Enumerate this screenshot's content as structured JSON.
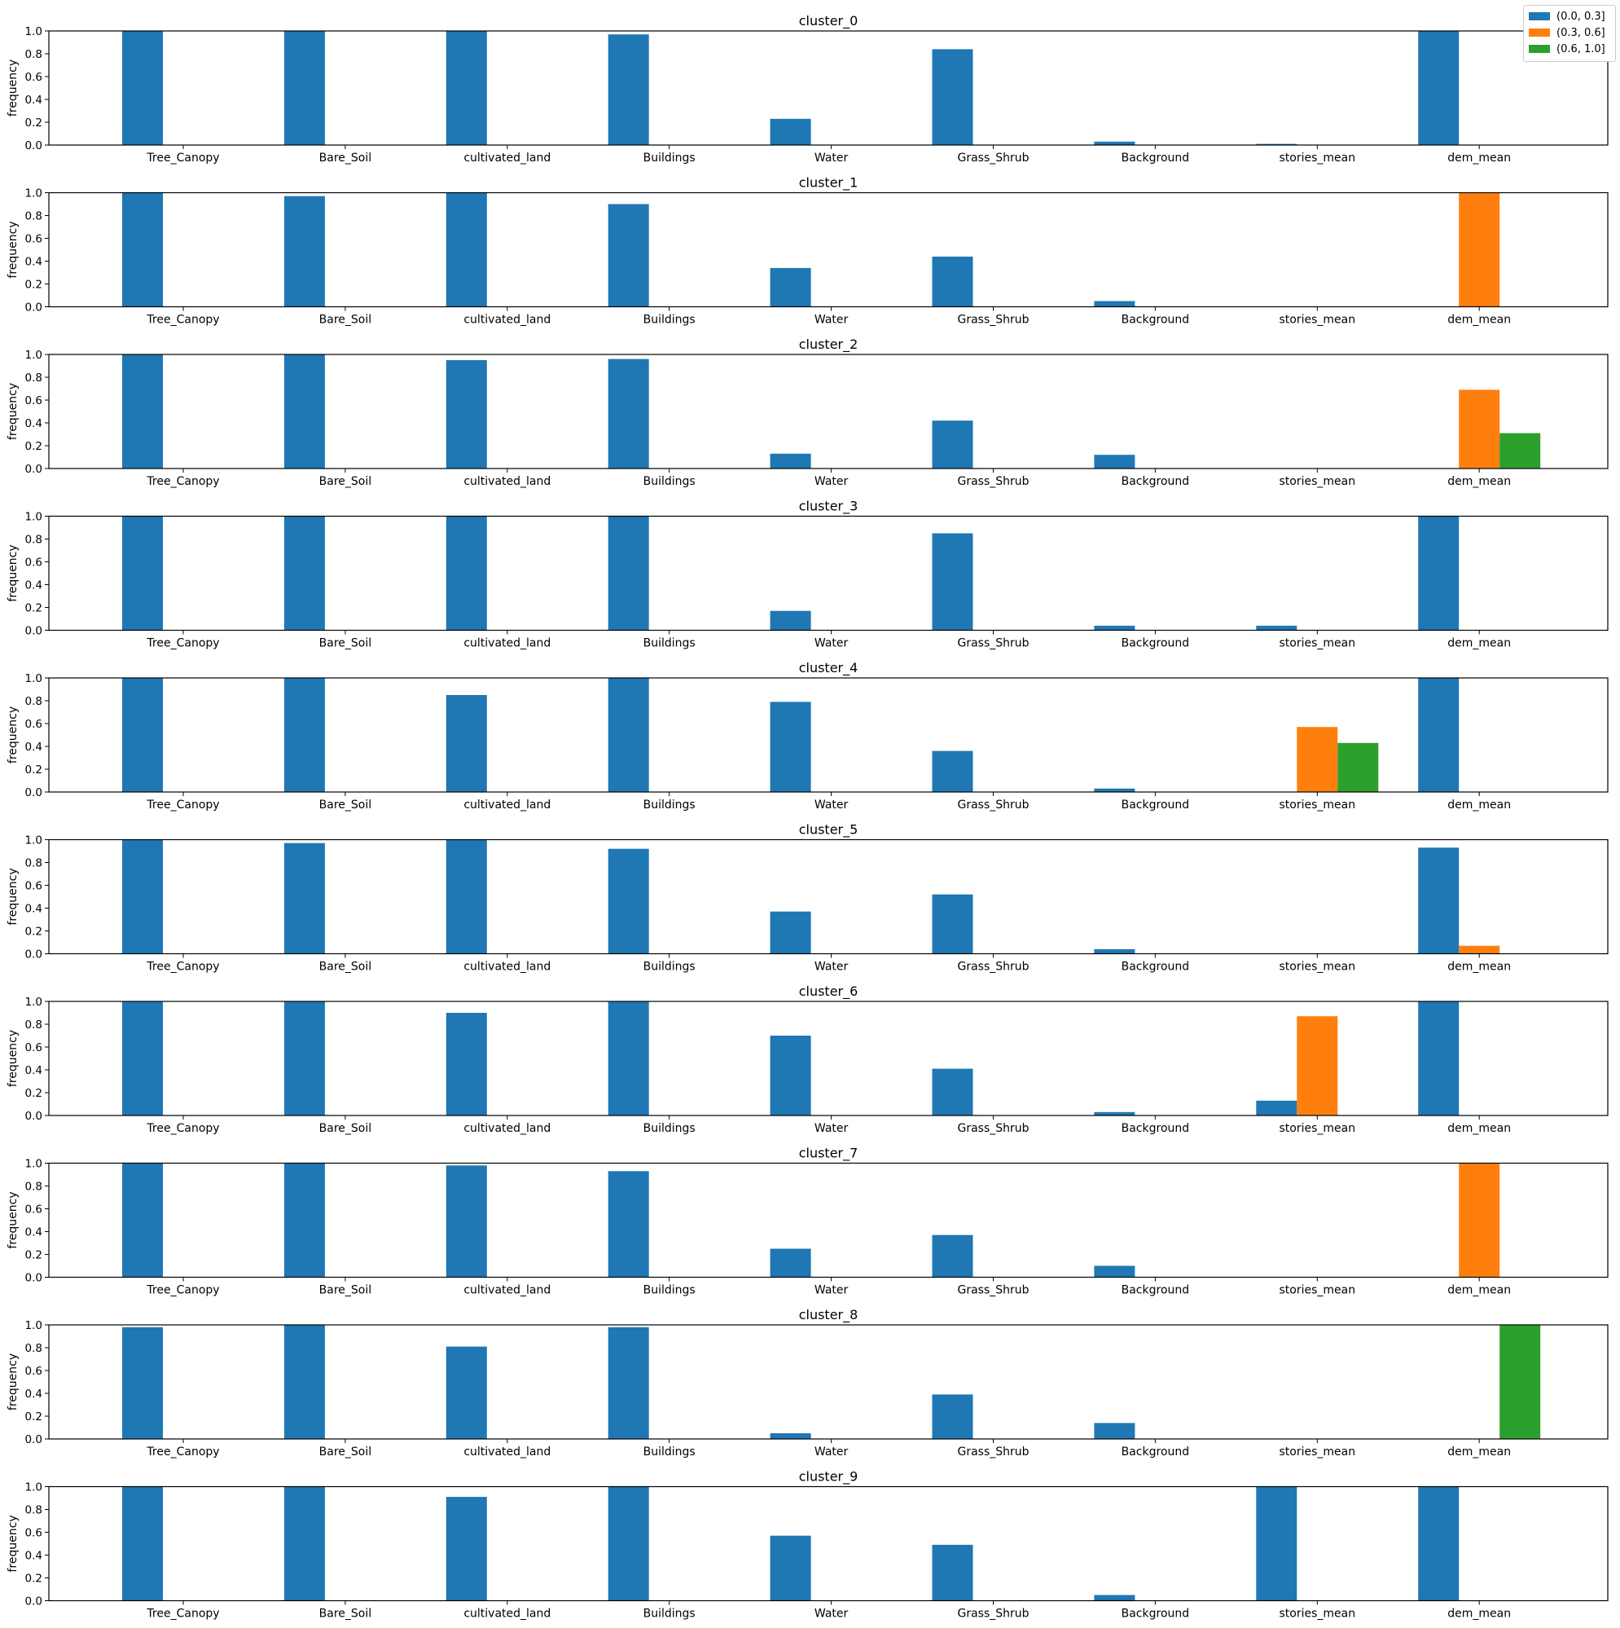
{
  "colors": {
    "bin_0": "#1f77b4",
    "bin_1": "#ff7f0e",
    "bin_2": "#2ca02c"
  },
  "chart_data": {
    "type": "bar",
    "layout": "10 stacked subplots, grouped bars",
    "categories": [
      "Tree_Canopy",
      "Bare_Soil",
      "cultivated_land",
      "Buildings",
      "Water",
      "Grass_Shrub",
      "Background",
      "stories_mean",
      "dem_mean"
    ],
    "bins": [
      "(0.0, 0.3]",
      "(0.3, 0.6]",
      "(0.6, 1.0]"
    ],
    "ylabel": "frequency",
    "ylim": [
      0,
      1.0
    ],
    "yticks": [
      "0.0",
      "0.2",
      "0.4",
      "0.6",
      "0.8",
      "1.0"
    ],
    "legend_position": "top-right",
    "grid": false,
    "panels": [
      {
        "title": "cluster_0",
        "series": [
          {
            "name": "(0.0, 0.3]",
            "values": [
              1.0,
              1.0,
              1.0,
              0.97,
              0.23,
              0.84,
              0.03,
              0.01,
              1.0
            ]
          },
          {
            "name": "(0.3, 0.6]",
            "values": [
              0,
              0,
              0,
              0,
              0,
              0,
              0,
              0,
              0
            ]
          },
          {
            "name": "(0.6, 1.0]",
            "values": [
              0,
              0,
              0,
              0,
              0,
              0,
              0,
              0,
              0
            ]
          }
        ]
      },
      {
        "title": "cluster_1",
        "series": [
          {
            "name": "(0.0, 0.3]",
            "values": [
              1.0,
              0.97,
              1.0,
              0.9,
              0.34,
              0.44,
              0.05,
              0,
              0
            ]
          },
          {
            "name": "(0.3, 0.6]",
            "values": [
              0,
              0,
              0,
              0,
              0,
              0,
              0,
              0,
              1.0
            ]
          },
          {
            "name": "(0.6, 1.0]",
            "values": [
              0,
              0,
              0,
              0,
              0,
              0,
              0,
              0,
              0
            ]
          }
        ]
      },
      {
        "title": "cluster_2",
        "series": [
          {
            "name": "(0.0, 0.3]",
            "values": [
              1.0,
              1.0,
              0.95,
              0.96,
              0.13,
              0.42,
              0.12,
              0,
              0
            ]
          },
          {
            "name": "(0.3, 0.6]",
            "values": [
              0,
              0,
              0,
              0,
              0,
              0,
              0,
              0,
              0.69
            ]
          },
          {
            "name": "(0.6, 1.0]",
            "values": [
              0,
              0,
              0,
              0,
              0,
              0,
              0,
              0,
              0.31
            ]
          }
        ]
      },
      {
        "title": "cluster_3",
        "series": [
          {
            "name": "(0.0, 0.3]",
            "values": [
              1.0,
              1.0,
              1.0,
              1.0,
              0.17,
              0.85,
              0.04,
              0.04,
              1.0
            ]
          },
          {
            "name": "(0.3, 0.6]",
            "values": [
              0,
              0,
              0,
              0,
              0,
              0,
              0,
              0,
              0
            ]
          },
          {
            "name": "(0.6, 1.0]",
            "values": [
              0,
              0,
              0,
              0,
              0,
              0,
              0,
              0,
              0
            ]
          }
        ]
      },
      {
        "title": "cluster_4",
        "series": [
          {
            "name": "(0.0, 0.3]",
            "values": [
              1.0,
              1.0,
              0.85,
              1.0,
              0.79,
              0.36,
              0.03,
              0,
              1.0
            ]
          },
          {
            "name": "(0.3, 0.6]",
            "values": [
              0,
              0,
              0,
              0,
              0,
              0,
              0,
              0.57,
              0
            ]
          },
          {
            "name": "(0.6, 1.0]",
            "values": [
              0,
              0,
              0,
              0,
              0,
              0,
              0,
              0.43,
              0
            ]
          }
        ]
      },
      {
        "title": "cluster_5",
        "series": [
          {
            "name": "(0.0, 0.3]",
            "values": [
              1.0,
              0.97,
              1.0,
              0.92,
              0.37,
              0.52,
              0.04,
              0,
              0.93
            ]
          },
          {
            "name": "(0.3, 0.6]",
            "values": [
              0,
              0,
              0,
              0,
              0,
              0,
              0,
              0,
              0.07
            ]
          },
          {
            "name": "(0.6, 1.0]",
            "values": [
              0,
              0,
              0,
              0,
              0,
              0,
              0,
              0,
              0
            ]
          }
        ]
      },
      {
        "title": "cluster_6",
        "series": [
          {
            "name": "(0.0, 0.3]",
            "values": [
              1.0,
              1.0,
              0.9,
              1.0,
              0.7,
              0.41,
              0.03,
              0.13,
              1.0
            ]
          },
          {
            "name": "(0.3, 0.6]",
            "values": [
              0,
              0,
              0,
              0,
              0,
              0,
              0,
              0.87,
              0
            ]
          },
          {
            "name": "(0.6, 1.0]",
            "values": [
              0,
              0,
              0,
              0,
              0,
              0,
              0,
              0,
              0
            ]
          }
        ]
      },
      {
        "title": "cluster_7",
        "series": [
          {
            "name": "(0.0, 0.3]",
            "values": [
              1.0,
              1.0,
              0.98,
              0.93,
              0.25,
              0.37,
              0.1,
              0,
              0
            ]
          },
          {
            "name": "(0.3, 0.6]",
            "values": [
              0,
              0,
              0,
              0,
              0,
              0,
              0,
              0,
              1.0
            ]
          },
          {
            "name": "(0.6, 1.0]",
            "values": [
              0,
              0,
              0,
              0,
              0,
              0,
              0,
              0,
              0
            ]
          }
        ]
      },
      {
        "title": "cluster_8",
        "series": [
          {
            "name": "(0.0, 0.3]",
            "values": [
              0.98,
              1.0,
              0.81,
              0.98,
              0.05,
              0.39,
              0.14,
              0,
              0
            ]
          },
          {
            "name": "(0.3, 0.6]",
            "values": [
              0,
              0,
              0,
              0,
              0,
              0,
              0,
              0,
              0
            ]
          },
          {
            "name": "(0.6, 1.0]",
            "values": [
              0,
              0,
              0,
              0,
              0,
              0,
              0,
              0,
              1.0
            ]
          }
        ]
      },
      {
        "title": "cluster_9",
        "series": [
          {
            "name": "(0.0, 0.3]",
            "values": [
              1.0,
              1.0,
              0.91,
              1.0,
              0.57,
              0.49,
              0.05,
              1.0,
              1.0
            ]
          },
          {
            "name": "(0.3, 0.6]",
            "values": [
              0,
              0,
              0,
              0,
              0,
              0,
              0,
              0,
              0
            ]
          },
          {
            "name": "(0.6, 1.0]",
            "values": [
              0,
              0,
              0,
              0,
              0,
              0,
              0,
              0,
              0
            ]
          }
        ]
      }
    ]
  }
}
